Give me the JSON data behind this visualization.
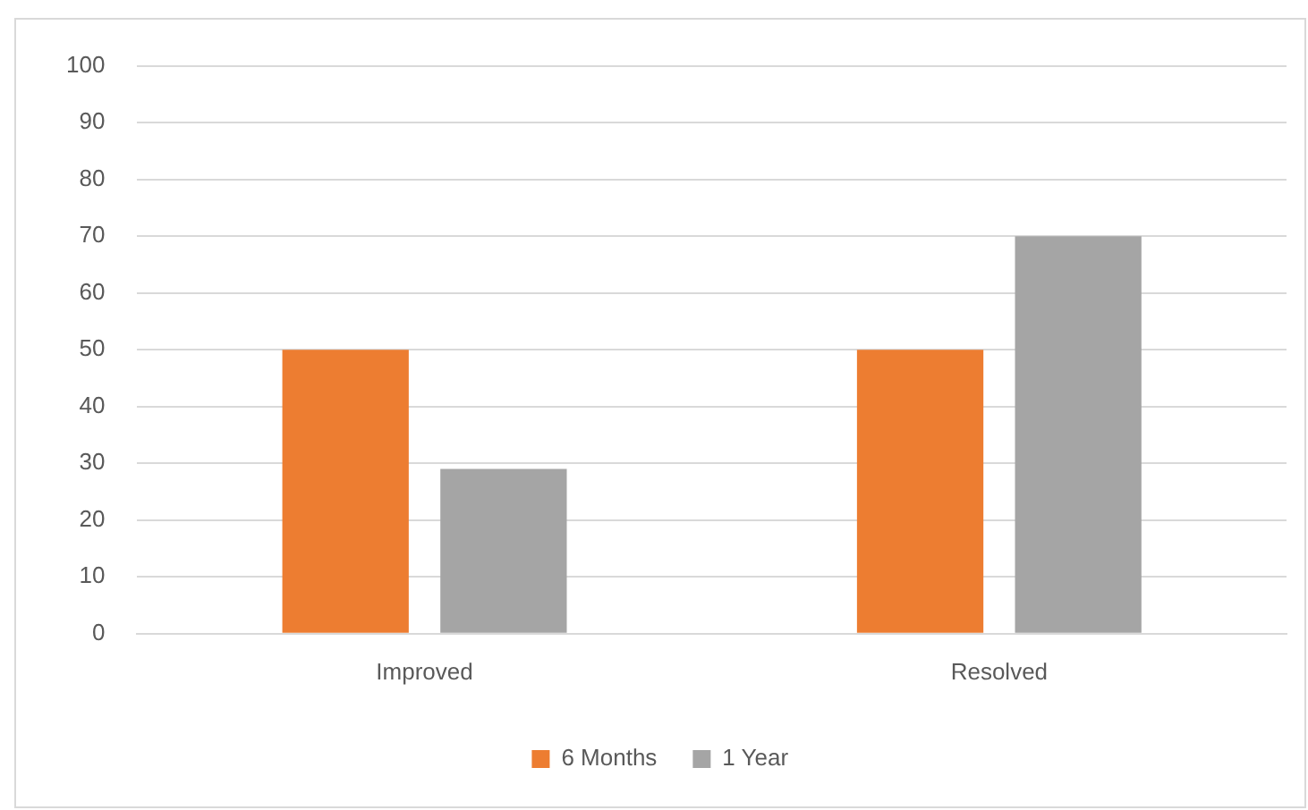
{
  "chart_data": {
    "type": "bar",
    "categories": [
      "Improved",
      "Resolved"
    ],
    "series": [
      {
        "name": "6 Months",
        "color": "#ed7d31",
        "values": [
          50,
          50
        ]
      },
      {
        "name": "1 Year",
        "color": "#a5a5a5",
        "values": [
          29,
          70
        ]
      }
    ],
    "ylim": [
      0,
      100
    ],
    "yticks": [
      0,
      10,
      20,
      30,
      40,
      50,
      60,
      70,
      80,
      90,
      100
    ],
    "grid": "y",
    "legend": "bottom"
  }
}
